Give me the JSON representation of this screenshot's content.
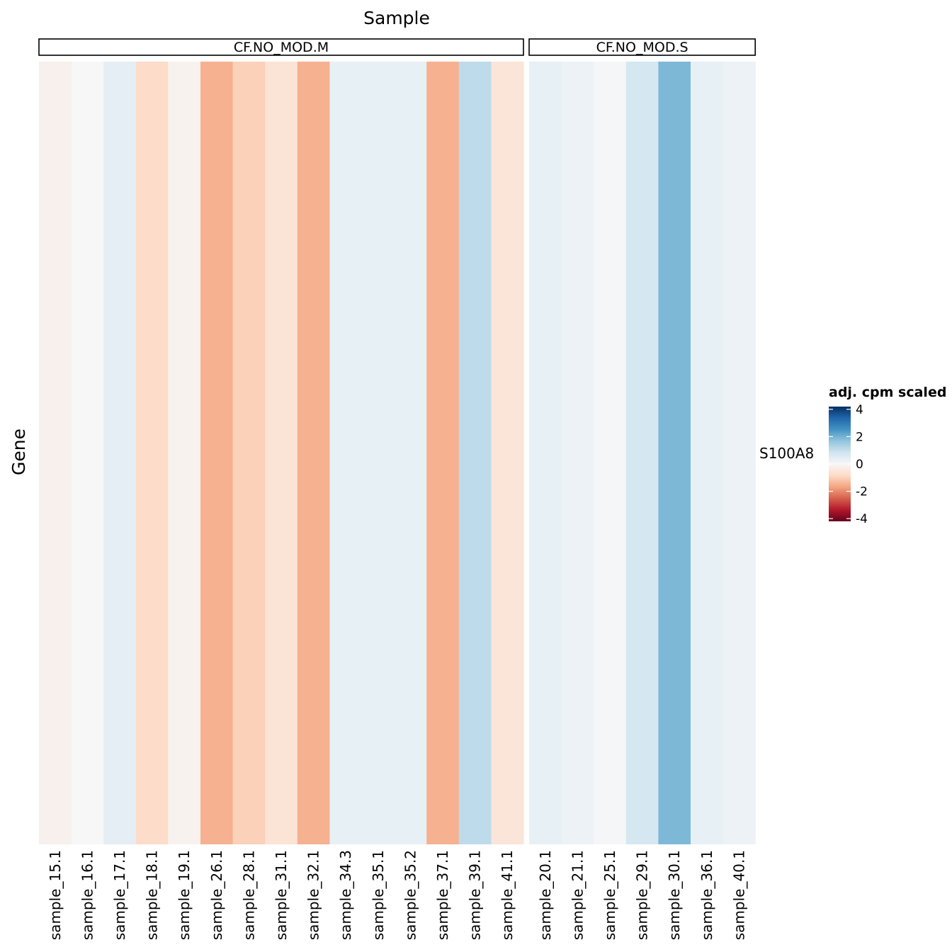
{
  "chart_data": {
    "type": "heatmap",
    "title": "Sample",
    "xlabel": "Sample",
    "ylabel": "Gene",
    "genes": [
      "S100A8"
    ],
    "facets": [
      {
        "label": "CF.NO_MOD.M",
        "samples": [
          "sample_15.1",
          "sample_16.1",
          "sample_17.1",
          "sample_18.1",
          "sample_19.1",
          "sample_26.1",
          "sample_28.1",
          "sample_31.1",
          "sample_32.1",
          "sample_34.3",
          "sample_35.1",
          "sample_35.2",
          "sample_37.1",
          "sample_39.1",
          "sample_41.1"
        ],
        "values": [
          -0.2,
          0.0,
          0.4,
          -0.8,
          -0.15,
          -1.5,
          -1.0,
          -0.6,
          -1.5,
          0.35,
          0.35,
          0.35,
          -1.5,
          1.1,
          -0.55
        ]
      },
      {
        "label": "CF.NO_MOD.S",
        "samples": [
          "sample_20.1",
          "sample_21.1",
          "sample_25.1",
          "sample_29.1",
          "sample_30.1",
          "sample_36.1",
          "sample_40.1"
        ],
        "values": [
          0.35,
          0.25,
          0.05,
          0.75,
          1.9,
          0.35,
          0.25
        ]
      }
    ],
    "legend": {
      "title": "adj. cpm scaled",
      "ticks": [
        4,
        2,
        0,
        -2,
        -4
      ],
      "range": [
        -4.2,
        4.2
      ],
      "placement": "right"
    },
    "colors": {
      "low": "#67001f",
      "mid": "#f7f7f7",
      "high": "#053061"
    }
  }
}
